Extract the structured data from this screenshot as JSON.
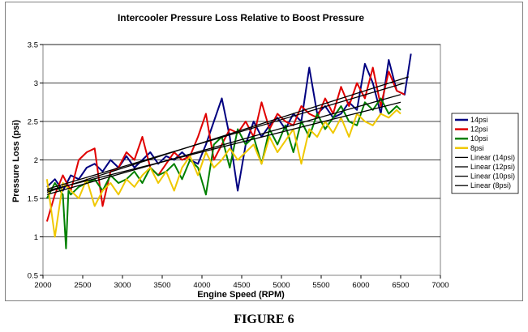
{
  "figure_label": "FIGURE 6",
  "chart_data": {
    "type": "line",
    "title": "Intercooler Pressure Loss Relative to Boost Pressure",
    "xlabel": "Engine Speed (RPM)",
    "ylabel": "Pressure Loss (psi)",
    "xlim": [
      2000,
      7000
    ],
    "ylim": [
      0.5,
      3.5
    ],
    "x_ticks": [
      "2000",
      "2500",
      "3000",
      "3500",
      "4000",
      "4500",
      "5000",
      "5500",
      "6000",
      "6500",
      "7000"
    ],
    "y_ticks": [
      "0.5",
      "1",
      "1.5",
      "2",
      "2.5",
      "3",
      "3.5"
    ],
    "grid": "horizontal",
    "legend_position": "right",
    "series": [
      {
        "name": "14psi",
        "color": "#000080",
        "x": [
          2050,
          2150,
          2250,
          2350,
          2450,
          2550,
          2650,
          2750,
          2850,
          2950,
          3050,
          3150,
          3250,
          3350,
          3450,
          3550,
          3650,
          3750,
          3850,
          3950,
          4050,
          4150,
          4250,
          4350,
          4450,
          4550,
          4650,
          4750,
          4850,
          4950,
          5050,
          5150,
          5250,
          5350,
          5450,
          5550,
          5650,
          5750,
          5850,
          5950,
          6050,
          6150,
          6250,
          6350,
          6450,
          6550,
          6630
        ],
        "y": [
          1.65,
          1.75,
          1.6,
          1.8,
          1.75,
          1.9,
          1.95,
          1.85,
          2.0,
          1.9,
          2.05,
          1.9,
          2.0,
          2.1,
          1.95,
          2.05,
          2.0,
          2.1,
          2.0,
          1.95,
          2.2,
          2.5,
          2.8,
          2.3,
          1.6,
          2.2,
          2.5,
          2.3,
          2.45,
          2.55,
          2.4,
          2.6,
          2.5,
          3.2,
          2.6,
          2.7,
          2.55,
          2.6,
          2.75,
          2.65,
          3.25,
          3.0,
          2.6,
          3.3,
          2.9,
          2.85,
          3.38
        ]
      },
      {
        "name": "12psi",
        "color": "#e00000",
        "x": [
          2050,
          2150,
          2250,
          2350,
          2450,
          2550,
          2650,
          2750,
          2850,
          2950,
          3050,
          3150,
          3250,
          3350,
          3450,
          3550,
          3650,
          3750,
          3850,
          3950,
          4050,
          4150,
          4250,
          4350,
          4450,
          4550,
          4650,
          4750,
          4850,
          4950,
          5050,
          5150,
          5250,
          5350,
          5450,
          5550,
          5650,
          5750,
          5850,
          5950,
          6050,
          6150,
          6250,
          6350,
          6450,
          6550
        ],
        "y": [
          1.2,
          1.55,
          1.8,
          1.6,
          2.0,
          2.1,
          2.15,
          1.4,
          1.85,
          1.9,
          2.1,
          2.0,
          2.3,
          1.9,
          1.8,
          1.95,
          2.1,
          2.0,
          2.05,
          2.3,
          2.6,
          2.0,
          2.2,
          2.4,
          2.35,
          2.5,
          2.3,
          2.75,
          2.4,
          2.6,
          2.5,
          2.45,
          2.7,
          2.6,
          2.55,
          2.8,
          2.6,
          2.95,
          2.7,
          3.0,
          2.8,
          3.2,
          2.7,
          3.15,
          2.9,
          2.85
        ]
      },
      {
        "name": "10psi",
        "color": "#008000",
        "x": [
          2050,
          2150,
          2250,
          2290,
          2320,
          2350,
          2450,
          2550,
          2650,
          2750,
          2850,
          2950,
          3050,
          3150,
          3250,
          3350,
          3450,
          3550,
          3650,
          3750,
          3850,
          3950,
          4050,
          4150,
          4250,
          4350,
          4450,
          4550,
          4650,
          4750,
          4850,
          4950,
          5050,
          5150,
          5250,
          5350,
          5450,
          5550,
          5650,
          5750,
          5850,
          5950,
          6050,
          6150,
          6250,
          6350,
          6450,
          6500
        ],
        "y": [
          1.5,
          1.7,
          1.55,
          0.85,
          1.6,
          1.55,
          1.65,
          1.7,
          1.75,
          1.6,
          1.8,
          1.7,
          1.75,
          1.85,
          1.7,
          1.9,
          1.8,
          1.85,
          1.95,
          1.75,
          2.0,
          1.9,
          1.55,
          2.2,
          2.3,
          1.9,
          2.4,
          2.2,
          2.3,
          1.95,
          2.4,
          2.2,
          2.45,
          2.1,
          2.5,
          2.3,
          2.6,
          2.4,
          2.55,
          2.7,
          2.5,
          2.45,
          2.75,
          2.65,
          2.8,
          2.6,
          2.7,
          2.65
        ]
      },
      {
        "name": "8psi",
        "color": "#f0c800",
        "x": [
          2050,
          2150,
          2250,
          2350,
          2450,
          2550,
          2650,
          2750,
          2850,
          2950,
          3050,
          3150,
          3250,
          3350,
          3450,
          3550,
          3650,
          3750,
          3850,
          3950,
          4050,
          4150,
          4250,
          4350,
          4450,
          4550,
          4650,
          4750,
          4850,
          4950,
          5050,
          5150,
          5250,
          5350,
          5450,
          5550,
          5650,
          5750,
          5850,
          5950,
          6050,
          6150,
          6250,
          6350,
          6450,
          6500
        ],
        "y": [
          1.75,
          1.0,
          1.7,
          1.6,
          1.5,
          1.75,
          1.4,
          1.6,
          1.7,
          1.55,
          1.75,
          1.65,
          1.8,
          1.9,
          1.7,
          1.85,
          1.6,
          1.9,
          2.05,
          1.8,
          2.1,
          1.9,
          2.0,
          2.15,
          2.0,
          2.1,
          2.2,
          1.95,
          2.3,
          2.1,
          2.25,
          2.4,
          1.95,
          2.4,
          2.3,
          2.5,
          2.35,
          2.55,
          2.3,
          2.6,
          2.5,
          2.45,
          2.6,
          2.55,
          2.65,
          2.6
        ]
      },
      {
        "name": "Linear (14psi)",
        "color": "#000000",
        "x": [
          2050,
          6600
        ],
        "y": [
          1.58,
          3.08
        ]
      },
      {
        "name": "Linear (12psi)",
        "color": "#000000",
        "x": [
          2050,
          6550
        ],
        "y": [
          1.62,
          3.0
        ]
      },
      {
        "name": "Linear (10psi)",
        "color": "#000000",
        "x": [
          2050,
          6500
        ],
        "y": [
          1.55,
          2.85
        ]
      },
      {
        "name": "Linear (8psi)",
        "color": "#000000",
        "x": [
          2050,
          6500
        ],
        "y": [
          1.6,
          2.75
        ]
      }
    ]
  }
}
